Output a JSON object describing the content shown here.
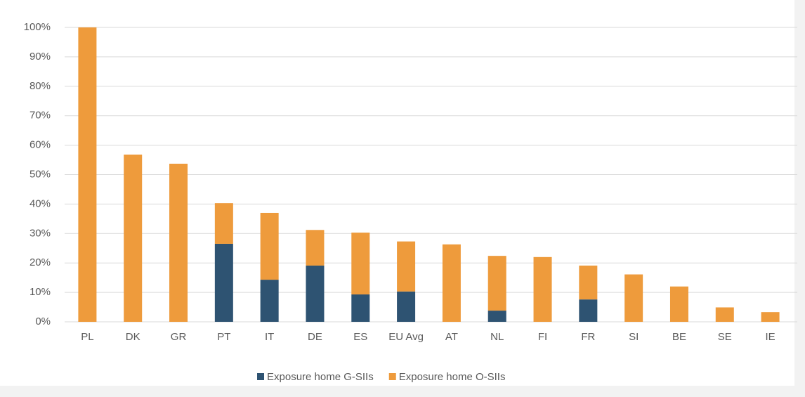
{
  "chart_data": {
    "type": "stacked_bar",
    "categories": [
      "PL",
      "DK",
      "GR",
      "PT",
      "IT",
      "DE",
      "ES",
      "EU Avg",
      "AT",
      "NL",
      "FI",
      "FR",
      "SI",
      "BE",
      "SE",
      "IE"
    ],
    "series": [
      {
        "name": "Exposure home G-SIIs",
        "color": "#2e5372",
        "values": [
          0,
          0,
          0,
          26.5,
          14.3,
          19.1,
          9.3,
          10.3,
          0,
          3.8,
          0,
          7.6,
          0,
          0,
          0,
          0
        ]
      },
      {
        "name": "Exposure home O-SIIs",
        "color": "#ee9b3c",
        "values": [
          100,
          56.8,
          53.7,
          13.8,
          22.7,
          12.1,
          21.0,
          17.0,
          26.3,
          18.6,
          22.0,
          11.5,
          16.1,
          12.0,
          4.9,
          3.3
        ]
      }
    ],
    "ylim": [
      0,
      100
    ],
    "yticks": [
      {
        "value": 0,
        "label": "0%"
      },
      {
        "value": 10,
        "label": "10%"
      },
      {
        "value": 20,
        "label": "20%"
      },
      {
        "value": 30,
        "label": "30%"
      },
      {
        "value": 40,
        "label": "40%"
      },
      {
        "value": 50,
        "label": "50%"
      },
      {
        "value": 60,
        "label": "60%"
      },
      {
        "value": 70,
        "label": "70%"
      },
      {
        "value": 80,
        "label": "80%"
      },
      {
        "value": 90,
        "label": "90%"
      },
      {
        "value": 100,
        "label": "100%"
      }
    ],
    "grid": true,
    "legend": "bottom"
  }
}
